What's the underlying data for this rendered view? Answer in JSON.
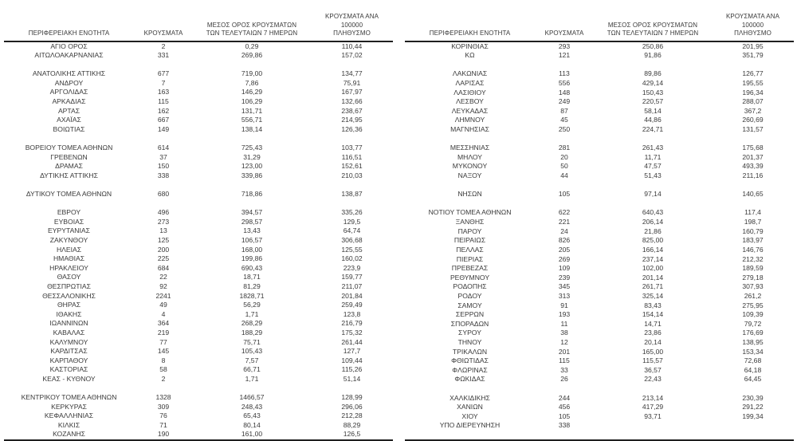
{
  "headers": {
    "col1": "ΠΕΡΙΦΕΡΕΙΑΚΗ ΕΝΟΤΗΤΑ",
    "col2": "ΚΡΟΥΣΜΑΤΑ",
    "col3_line1": "ΜΕΣΟΣ ΟΡΟΣ ΚΡΟΥΣΜΑΤΩΝ",
    "col3_line2": "ΤΩΝ ΤΕΛΕΥΤΑΙΩΝ 7 ΗΜΕΡΩΝ",
    "col4_line1": "ΚΡΟΥΣΜΑΤΑ ΑΝΑ 100000",
    "col4_line2": "ΠΛΗΘΥΣΜΟ"
  },
  "left_table": {
    "rows": [
      [
        "ΑΓΙΟ ΟΡΟΣ",
        "2",
        "0,29",
        "110,44"
      ],
      [
        "ΑΙΤΩΛΟΑΚΑΡΝΑΝΙΑΣ",
        "331",
        "269,86",
        "157,02"
      ],
      [
        "",
        "",
        "",
        ""
      ],
      [
        "ΑΝΑΤΟΛΙΚΗΣ ΑΤΤΙΚΗΣ",
        "677",
        "719,00",
        "134,77"
      ],
      [
        "ΑΝΔΡΟΥ",
        "7",
        "7,86",
        "75,91"
      ],
      [
        "ΑΡΓΟΛΙΔΑΣ",
        "163",
        "146,29",
        "167,97"
      ],
      [
        "ΑΡΚΑΔΙΑΣ",
        "115",
        "106,29",
        "132,66"
      ],
      [
        "ΑΡΤΑΣ",
        "162",
        "131,71",
        "238,67"
      ],
      [
        "ΑΧΑΪΑΣ",
        "667",
        "556,71",
        "214,95"
      ],
      [
        "ΒΟΙΩΤΙΑΣ",
        "149",
        "138,14",
        "126,36"
      ],
      [
        "",
        "",
        "",
        ""
      ],
      [
        "ΒΟΡΕΙΟΥ ΤΟΜΕΑ ΑΘΗΝΩΝ",
        "614",
        "725,43",
        "103,77"
      ],
      [
        "ΓΡΕΒΕΝΩΝ",
        "37",
        "31,29",
        "116,51"
      ],
      [
        "ΔΡΑΜΑΣ",
        "150",
        "123,00",
        "152,61"
      ],
      [
        "ΔΥΤΙΚΗΣ ΑΤΤΙΚΗΣ",
        "338",
        "339,86",
        "210,03"
      ],
      [
        "",
        "",
        "",
        ""
      ],
      [
        "ΔΥΤΙΚΟΥ ΤΟΜΕΑ ΑΘΗΝΩΝ",
        "680",
        "718,86",
        "138,87"
      ],
      [
        "",
        "",
        "",
        ""
      ],
      [
        "ΕΒΡΟΥ",
        "496",
        "394,57",
        "335,26"
      ],
      [
        "ΕΥΒΟΙΑΣ",
        "273",
        "298,57",
        "129,5"
      ],
      [
        "ΕΥΡΥΤΑΝΙΑΣ",
        "13",
        "13,43",
        "64,74"
      ],
      [
        "ΖΑΚΥΝΘΟΥ",
        "125",
        "106,57",
        "306,68"
      ],
      [
        "ΗΛΕΙΑΣ",
        "200",
        "168,00",
        "125,55"
      ],
      [
        "ΗΜΑΘΙΑΣ",
        "225",
        "199,86",
        "160,02"
      ],
      [
        "ΗΡΑΚΛΕΙΟΥ",
        "684",
        "690,43",
        "223,9"
      ],
      [
        "ΘΑΣΟΥ",
        "22",
        "18,71",
        "159,77"
      ],
      [
        "ΘΕΣΠΡΩΤΙΑΣ",
        "92",
        "81,29",
        "211,07"
      ],
      [
        "ΘΕΣΣΑΛΟΝΙΚΗΣ",
        "2241",
        "1828,71",
        "201,84"
      ],
      [
        "ΘΗΡΑΣ",
        "49",
        "56,29",
        "259,49"
      ],
      [
        "ΙΘΑΚΗΣ",
        "4",
        "1,71",
        "123,8"
      ],
      [
        "ΙΩΑΝΝΙΝΩΝ",
        "364",
        "268,29",
        "216,79"
      ],
      [
        "ΚΑΒΑΛΑΣ",
        "219",
        "188,29",
        "175,32"
      ],
      [
        "ΚΑΛΥΜΝΟΥ",
        "77",
        "75,71",
        "261,44"
      ],
      [
        "ΚΑΡΔΙΤΣΑΣ",
        "145",
        "105,43",
        "127,7"
      ],
      [
        "ΚΑΡΠΑΘΟΥ",
        "8",
        "7,57",
        "109,44"
      ],
      [
        "ΚΑΣΤΟΡΙΑΣ",
        "58",
        "66,71",
        "115,26"
      ],
      [
        "ΚΕΑΣ - ΚΥΘΝΟΥ",
        "2",
        "1,71",
        "51,14"
      ],
      [
        "",
        "",
        "",
        ""
      ],
      [
        "ΚΕΝΤΡΙΚΟΥ ΤΟΜΕΑ ΑΘΗΝΩΝ",
        "1328",
        "1466,57",
        "128,99"
      ],
      [
        "ΚΕΡΚΥΡΑΣ",
        "309",
        "248,43",
        "296,06"
      ],
      [
        "ΚΕΦΑΛΛΗΝΙΑΣ",
        "76",
        "65,43",
        "212,28"
      ],
      [
        "ΚΙΛΚΙΣ",
        "71",
        "80,14",
        "88,29"
      ],
      [
        "ΚΟΖΑΝΗΣ",
        "190",
        "161,00",
        "126,5"
      ]
    ]
  },
  "right_table": {
    "rows": [
      [
        "ΚΟΡΙΝΘΙΑΣ",
        "293",
        "250,86",
        "201,95"
      ],
      [
        "ΚΩ",
        "121",
        "91,86",
        "351,79"
      ],
      [
        "",
        "",
        "",
        ""
      ],
      [
        "ΛΑΚΩΝΙΑΣ",
        "113",
        "89,86",
        "126,77"
      ],
      [
        "ΛΑΡΙΣΑΣ",
        "556",
        "429,14",
        "195,55"
      ],
      [
        "ΛΑΣΙΘΙΟΥ",
        "148",
        "150,43",
        "196,34"
      ],
      [
        "ΛΕΣΒΟΥ",
        "249",
        "220,57",
        "288,07"
      ],
      [
        "ΛΕΥΚΑΔΑΣ",
        "87",
        "58,14",
        "367,2"
      ],
      [
        "ΛΗΜΝΟΥ",
        "45",
        "44,86",
        "260,69"
      ],
      [
        "ΜΑΓΝΗΣΙΑΣ",
        "250",
        "224,71",
        "131,57"
      ],
      [
        "",
        "",
        "",
        ""
      ],
      [
        "ΜΕΣΣΗΝΙΑΣ",
        "281",
        "261,43",
        "175,68"
      ],
      [
        "ΜΗΛΟΥ",
        "20",
        "11,71",
        "201,37"
      ],
      [
        "ΜΥΚΟΝΟΥ",
        "50",
        "47,57",
        "493,39"
      ],
      [
        "ΝΑΞΟΥ",
        "44",
        "51,43",
        "211,16"
      ],
      [
        "",
        "",
        "",
        ""
      ],
      [
        "ΝΗΣΩΝ",
        "105",
        "97,14",
        "140,65"
      ],
      [
        "",
        "",
        "",
        ""
      ],
      [
        "ΝΟΤΙΟΥ ΤΟΜΕΑ ΑΘΗΝΩΝ",
        "622",
        "640,43",
        "117,4"
      ],
      [
        "ΞΑΝΘΗΣ",
        "221",
        "206,14",
        "198,7"
      ],
      [
        "ΠΑΡΟΥ",
        "24",
        "21,86",
        "160,79"
      ],
      [
        "ΠΕΙΡΑΙΩΣ",
        "826",
        "825,00",
        "183,97"
      ],
      [
        "ΠΕΛΛΑΣ",
        "205",
        "166,14",
        "146,76"
      ],
      [
        "ΠΙΕΡΙΑΣ",
        "269",
        "237,14",
        "212,32"
      ],
      [
        "ΠΡΕΒΕΖΑΣ",
        "109",
        "102,00",
        "189,59"
      ],
      [
        "ΡΕΘΥΜΝΟΥ",
        "239",
        "201,14",
        "279,18"
      ],
      [
        "ΡΟΔΟΠΗΣ",
        "345",
        "261,71",
        "307,93"
      ],
      [
        "ΡΟΔΟΥ",
        "313",
        "325,14",
        "261,2"
      ],
      [
        "ΣΑΜΟΥ",
        "91",
        "83,43",
        "275,95"
      ],
      [
        "ΣΕΡΡΩΝ",
        "193",
        "154,14",
        "109,39"
      ],
      [
        "ΣΠΟΡΑΔΩΝ",
        "11",
        "14,71",
        "79,72"
      ],
      [
        "ΣΥΡΟΥ",
        "38",
        "23,86",
        "176,69"
      ],
      [
        "ΤΗΝΟΥ",
        "12",
        "20,14",
        "138,95"
      ],
      [
        "ΤΡΙΚΑΛΩΝ",
        "201",
        "165,00",
        "153,34"
      ],
      [
        "ΦΘΙΩΤΙΔΑΣ",
        "115",
        "115,57",
        "72,68"
      ],
      [
        "ΦΛΩΡΙΝΑΣ",
        "33",
        "36,57",
        "64,18"
      ],
      [
        "ΦΩΚΙΔΑΣ",
        "26",
        "22,43",
        "64,45"
      ],
      [
        "",
        "",
        "",
        ""
      ],
      [
        "ΧΑΛΚΙΔΙΚΗΣ",
        "244",
        "213,14",
        "230,39"
      ],
      [
        "ΧΑΝΙΩΝ",
        "456",
        "417,29",
        "291,22"
      ],
      [
        "ΧΙΟΥ",
        "105",
        "93,71",
        "199,34"
      ],
      [
        "ΥΠΟ ΔΙΕΡΕΥΝΗΣΗ",
        "338",
        "",
        ""
      ],
      [
        "",
        "",
        "",
        ""
      ]
    ]
  }
}
